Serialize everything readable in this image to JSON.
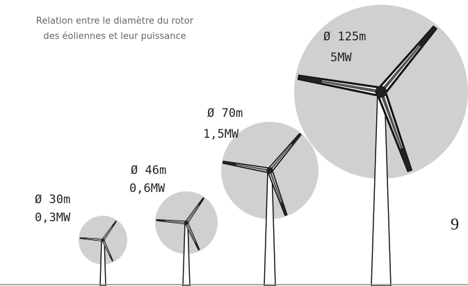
{
  "title": [
    "Relation entre le diamètre du rotor",
    "des éoliennes et leur puissance"
  ],
  "turbines": [
    {
      "diameter": "Ø 30m",
      "power": "0,3MW"
    },
    {
      "diameter": "Ø 46m",
      "power": "0,6MW"
    },
    {
      "diameter": "Ø 70m",
      "power": "1,5MW"
    },
    {
      "diameter": "Ø 125m",
      "power": "5MW"
    }
  ],
  "page_number": "9"
}
